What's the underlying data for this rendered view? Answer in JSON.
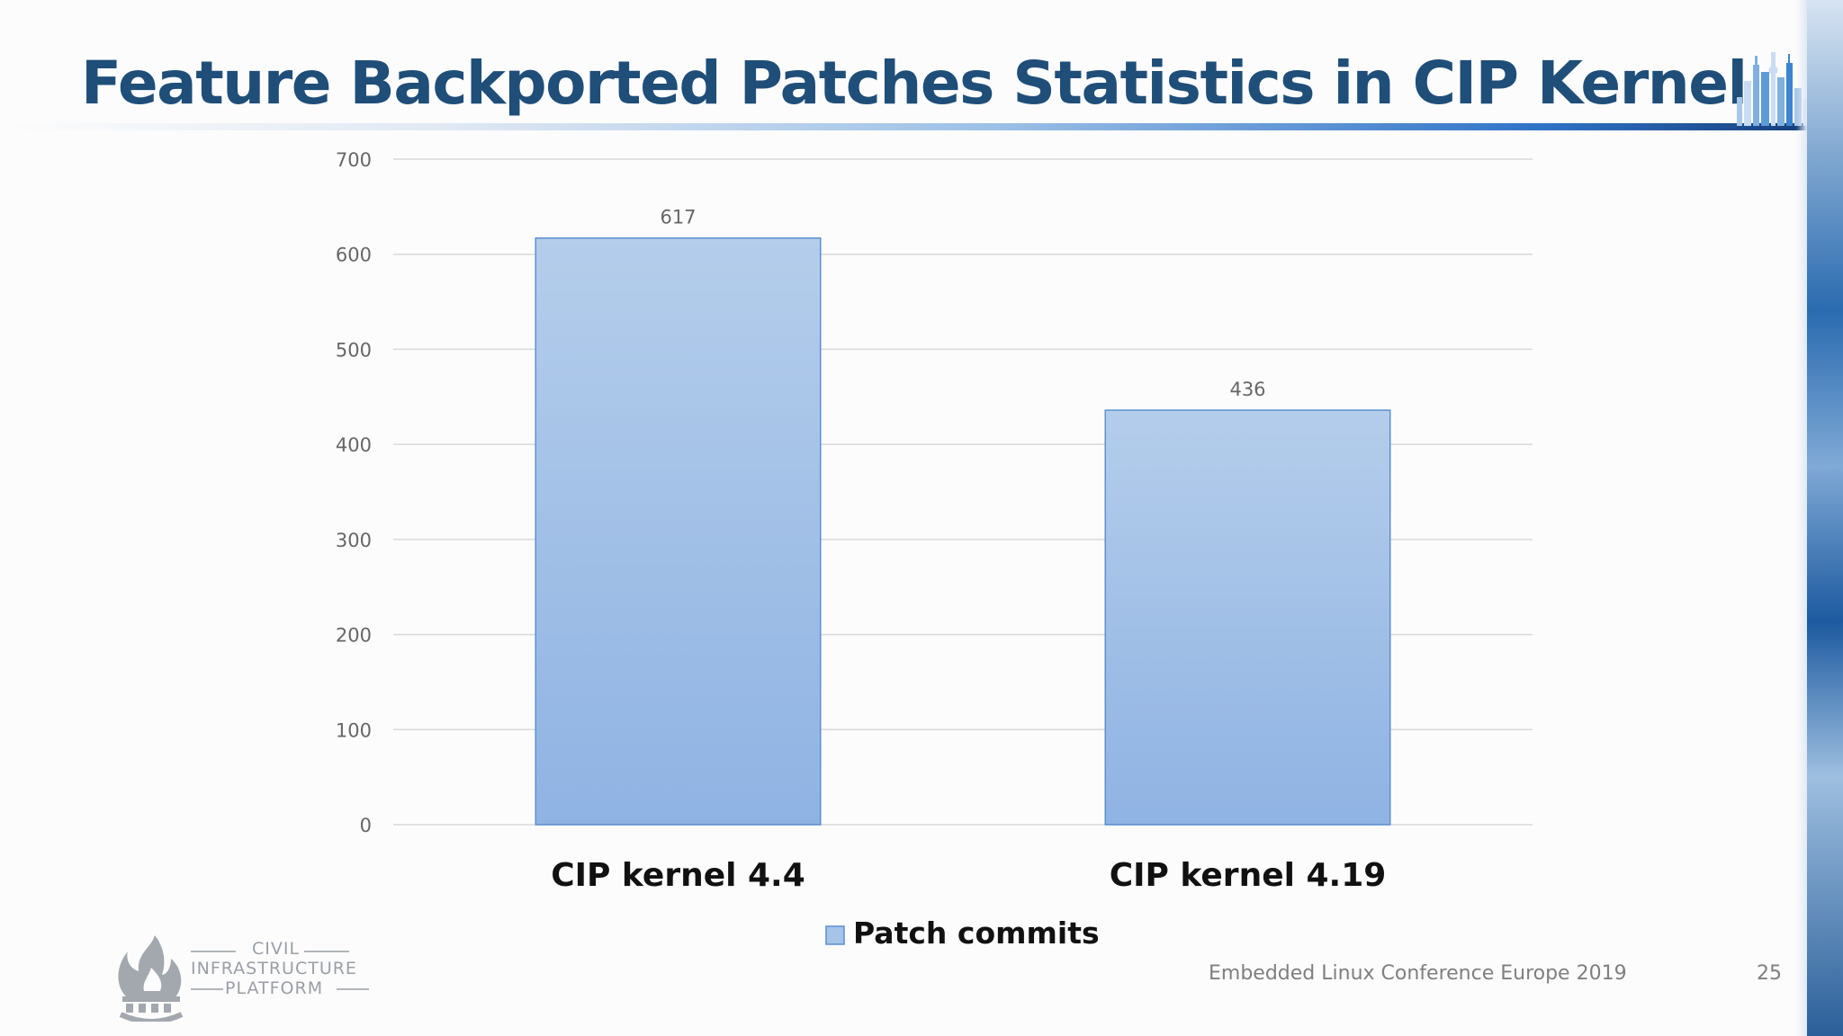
{
  "slide": {
    "title": "Feature Backported Patches Statistics in CIP Kernel",
    "footer": "Embedded Linux Conference Europe 2019",
    "page_number": "25",
    "logo": {
      "line1": "CIVIL",
      "line2": "INFRASTRUCTURE",
      "line3": "PLATFORM"
    }
  },
  "colors": {
    "title": "#1f4e79",
    "bar_fill_top": "#b4cdeb",
    "bar_fill_bottom": "#8fb3e3",
    "bar_stroke": "#5b8fcf",
    "gridline": "#d9d9d9",
    "tick_label": "#666666",
    "data_label": "#666666"
  },
  "chart_data": {
    "type": "bar",
    "categories": [
      "CIP kernel 4.4",
      "CIP kernel 4.19"
    ],
    "series": [
      {
        "name": "Patch commits",
        "values": [
          617,
          436
        ]
      }
    ],
    "data_labels": [
      "617",
      "436"
    ],
    "ylim": [
      0,
      700
    ],
    "yticks": [
      0,
      100,
      200,
      300,
      400,
      500,
      600,
      700
    ],
    "grid": true,
    "legend_position": "bottom",
    "xlabel": "",
    "ylabel": ""
  }
}
